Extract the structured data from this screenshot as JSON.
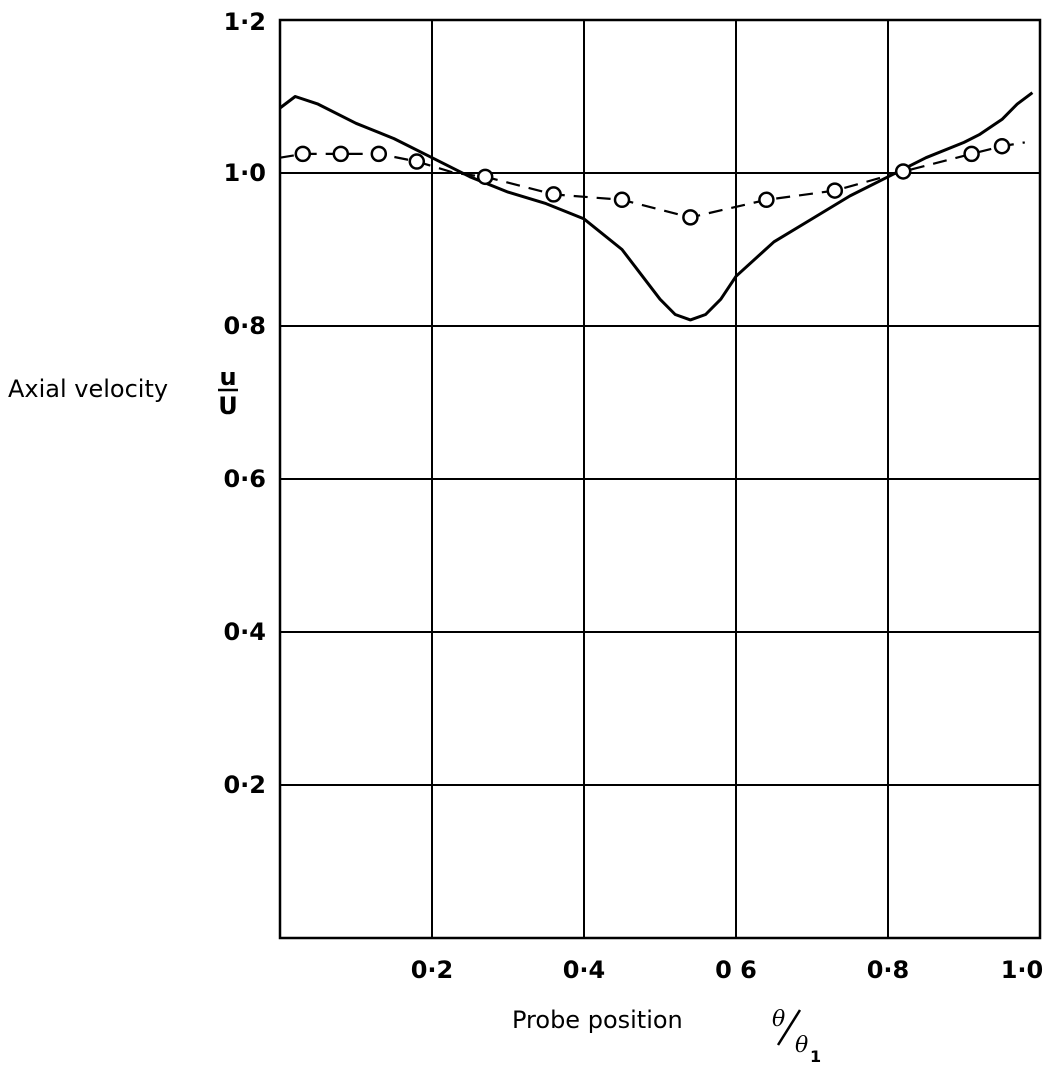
{
  "chart_data": {
    "type": "line",
    "xlabel": "Probe position",
    "xlabel_symbol": {
      "numerator": "θ",
      "denominator": "θ",
      "subscript": "1"
    },
    "ylabel": "Axial velocity",
    "ylabel_fraction": {
      "numerator": "u",
      "denominator": "U"
    },
    "xlim": [
      0.0,
      1.0
    ],
    "ylim": [
      0.0,
      1.2
    ],
    "x_ticks": [
      {
        "value": 0.2,
        "label": "0·2"
      },
      {
        "value": 0.4,
        "label": "0·4"
      },
      {
        "value": 0.6,
        "label": "0 6"
      },
      {
        "value": 0.8,
        "label": "0·8"
      },
      {
        "value": 1.0,
        "label": "1·0"
      }
    ],
    "y_ticks": [
      {
        "value": 0.2,
        "label": "0·2"
      },
      {
        "value": 0.4,
        "label": "0·4"
      },
      {
        "value": 0.6,
        "label": "0·6"
      },
      {
        "value": 0.8,
        "label": "0·8"
      },
      {
        "value": 1.0,
        "label": "1·0"
      },
      {
        "value": 1.2,
        "label": "1·2"
      }
    ],
    "grid": true,
    "series": [
      {
        "style": "solid",
        "x": [
          0.0,
          0.02,
          0.05,
          0.1,
          0.15,
          0.2,
          0.25,
          0.3,
          0.35,
          0.4,
          0.45,
          0.5,
          0.52,
          0.54,
          0.56,
          0.58,
          0.6,
          0.65,
          0.7,
          0.75,
          0.8,
          0.85,
          0.9,
          0.92,
          0.95,
          0.97,
          0.99
        ],
        "y": [
          1.085,
          1.1,
          1.09,
          1.065,
          1.045,
          1.02,
          0.995,
          0.975,
          0.96,
          0.94,
          0.9,
          0.835,
          0.815,
          0.808,
          0.815,
          0.835,
          0.865,
          0.91,
          0.94,
          0.97,
          0.995,
          1.02,
          1.04,
          1.05,
          1.07,
          1.09,
          1.105
        ]
      },
      {
        "style": "dashed-with-circles",
        "x": [
          0.0,
          0.03,
          0.08,
          0.13,
          0.18,
          0.23,
          0.27,
          0.36,
          0.45,
          0.54,
          0.64,
          0.73,
          0.82,
          0.91,
          0.95,
          0.98
        ],
        "y": [
          1.02,
          1.025,
          1.025,
          1.025,
          1.015,
          1.0,
          0.995,
          0.972,
          0.965,
          0.942,
          0.965,
          0.977,
          1.002,
          1.025,
          1.035,
          1.04
        ],
        "markers_x": [
          0.03,
          0.08,
          0.13,
          0.18,
          0.27,
          0.36,
          0.45,
          0.54,
          0.64,
          0.73,
          0.82,
          0.91,
          0.95
        ],
        "markers_y": [
          1.025,
          1.025,
          1.025,
          1.015,
          0.995,
          0.972,
          0.965,
          0.942,
          0.965,
          0.977,
          1.002,
          1.025,
          1.035
        ]
      }
    ]
  }
}
